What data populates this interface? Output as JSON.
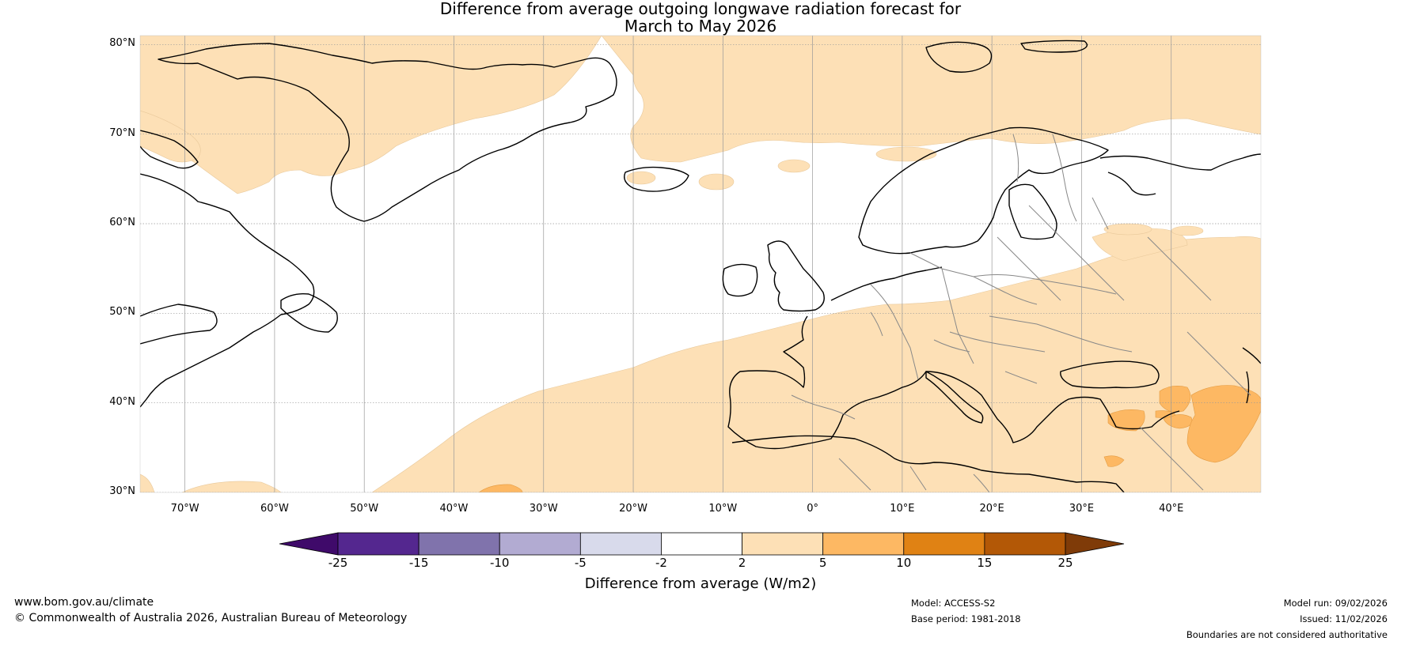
{
  "title": {
    "line1": "Difference from average outgoing longwave radiation forecast for",
    "line2": "March to May 2026"
  },
  "map": {
    "latitudes": [
      "80°N",
      "70°N",
      "60°N",
      "50°N",
      "40°N",
      "30°N"
    ],
    "longitudes": [
      "70°W",
      "60°W",
      "50°W",
      "40°W",
      "30°W",
      "20°W",
      "10°W",
      "0°",
      "10°E",
      "20°E",
      "30°E",
      "40°E"
    ],
    "extent": {
      "lon_min": -75,
      "lon_max": 50,
      "lat_min": 30,
      "lat_max": 81
    }
  },
  "colorbar": {
    "title": "Difference from average (W/m2)",
    "ticks": [
      "-25",
      "-15",
      "-10",
      "-5",
      "-2",
      "2",
      "5",
      "10",
      "15",
      "25"
    ],
    "colors": [
      "#3f0a6a",
      "#54278f",
      "#8073ac",
      "#b2abd2",
      "#d8daeb",
      "#ffffff",
      "#fde0b6",
      "#fdb863",
      "#e08214",
      "#b35806",
      "#7f3b08"
    ]
  },
  "footer": {
    "website": "www.bom.gov.au/climate",
    "copyright": "© Commonwealth of Australia 2026, Australian Bureau of Meteorology",
    "model": "Model: ACCESS-S2",
    "base_period": "Base period: 1981-2018",
    "model_run": "Model run: 09/02/2026",
    "issued": "Issued: 11/02/2026",
    "disclaimer": "Boundaries are not considered authoritative"
  }
}
